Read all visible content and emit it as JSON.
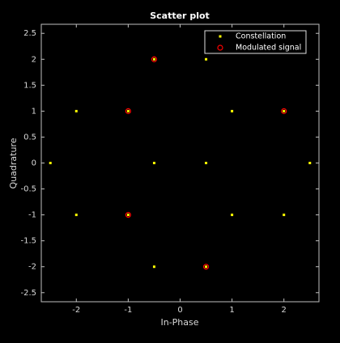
{
  "chart_data": {
    "type": "scatter",
    "title": "Scatter plot",
    "x_label": "In-Phase",
    "y_label": "Quadrature",
    "xlim": [
      -2.675,
      2.675
    ],
    "ylim": [
      -2.675,
      2.675
    ],
    "xticks": [
      -2,
      -1,
      0,
      1,
      2
    ],
    "yticks": [
      -2.5,
      -2,
      -1.5,
      -1,
      -0.5,
      0,
      0.5,
      1,
      1.5,
      2,
      2.5
    ],
    "grid": false,
    "legend_position": "upper-right",
    "series": [
      {
        "name": "Constellation",
        "color": "#ffff00",
        "marker": "point",
        "x": [
          -0.5,
          0.5,
          -2,
          -1,
          1,
          2,
          -2.5,
          -0.5,
          0.5,
          2.5,
          -2,
          -1,
          1,
          2,
          -0.5,
          0.5
        ],
        "values": [
          2,
          2,
          1,
          1,
          1,
          1,
          0,
          0,
          0,
          0,
          -1,
          -1,
          -1,
          -1,
          -2,
          -2
        ]
      },
      {
        "name": "Modulated signal",
        "color": "#ff0000",
        "marker": "circle",
        "x": [
          -0.5,
          -1,
          2,
          -1,
          0.5
        ],
        "values": [
          2,
          1,
          1,
          -1,
          -2
        ]
      }
    ]
  }
}
